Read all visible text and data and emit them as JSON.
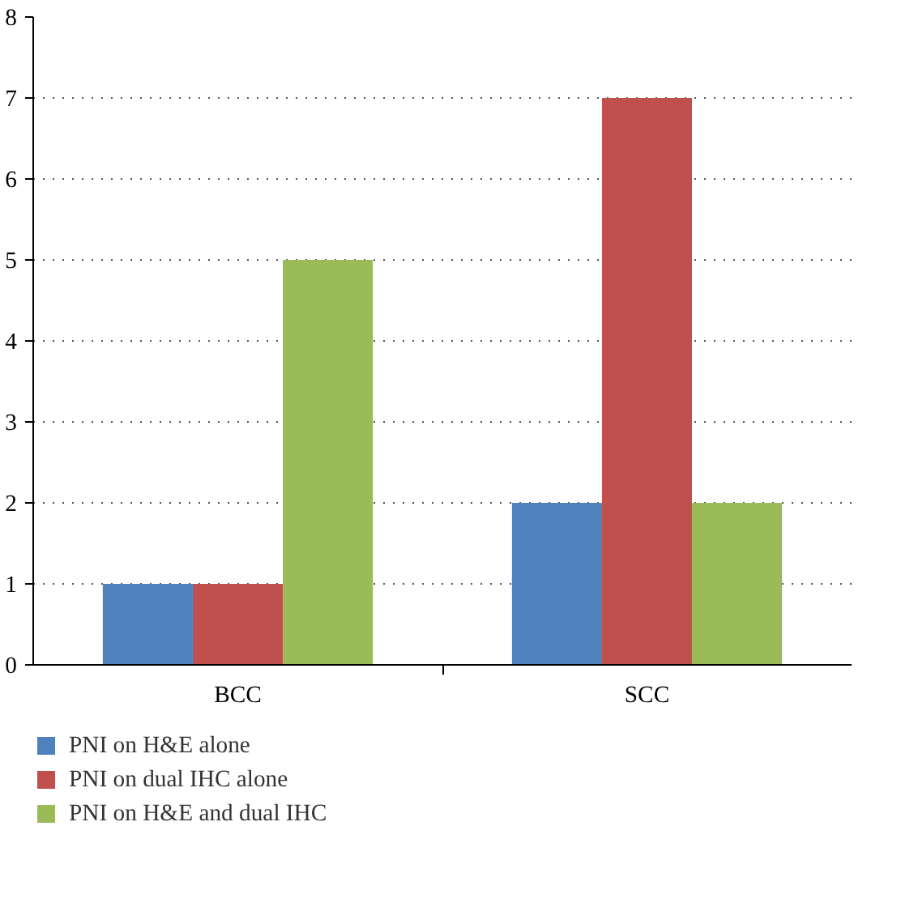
{
  "chart_data": {
    "type": "bar",
    "categories": [
      "BCC",
      "SCC"
    ],
    "series": [
      {
        "name": "PNI on H&E alone",
        "color": "#4f81bd",
        "values": [
          1,
          2
        ]
      },
      {
        "name": "PNI on dual IHC alone",
        "color": "#c0504d",
        "values": [
          1,
          7
        ]
      },
      {
        "name": "PNI on H&E and dual IHC",
        "color": "#9bbb59",
        "values": [
          5,
          2
        ]
      }
    ],
    "ylim": [
      0,
      8
    ],
    "yticks": [
      0,
      1,
      2,
      3,
      4,
      5,
      6,
      7,
      8
    ],
    "grid": "y",
    "legend": "bottom"
  }
}
